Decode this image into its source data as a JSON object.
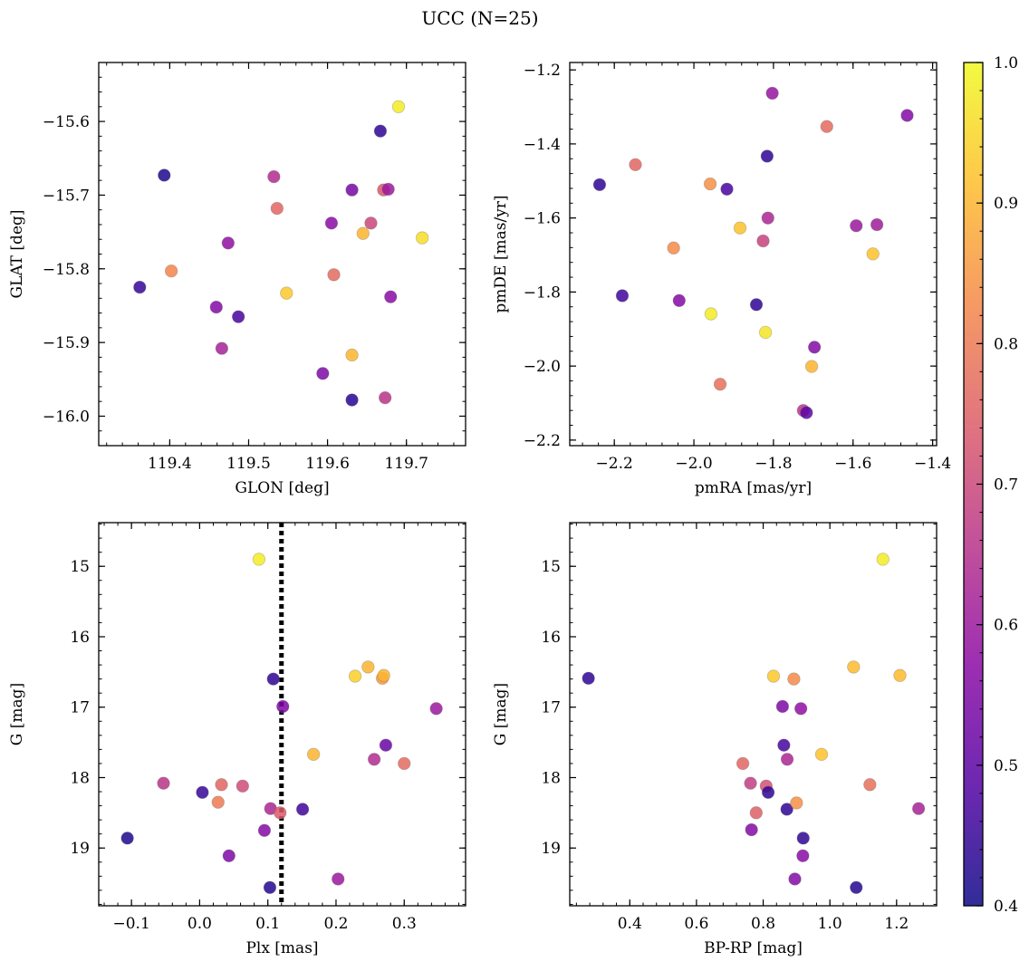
{
  "figure": {
    "title": "UCC (N=25)",
    "colormap": "plasma",
    "colorbar": {
      "range": [
        0.4,
        1.0
      ],
      "ticks": [
        "0.4",
        "0.5",
        "0.6",
        "0.7",
        "0.8",
        "0.9",
        "1.0"
      ],
      "tick_values": [
        0.4,
        0.5,
        0.6,
        0.7,
        0.8,
        0.9,
        1.0
      ]
    }
  },
  "chart_data": [
    {
      "type": "scatter",
      "xlabel": "GLON [deg]",
      "ylabel": "GLAT [deg]",
      "xlim": [
        119.31,
        119.775
      ],
      "ylim": [
        -16.04,
        -15.52
      ],
      "xticks": [
        119.4,
        119.5,
        119.6,
        119.7
      ],
      "xticklabels": [
        "119.4",
        "119.5",
        "119.6",
        "119.7"
      ],
      "yticks": [
        -15.6,
        -15.7,
        -15.8,
        -15.9,
        -16.0
      ],
      "yticklabels": [
        "−15.6",
        "−15.7",
        "−15.8",
        "−15.9",
        "−16.0"
      ],
      "y_inverted": false,
      "points": [
        {
          "x": 119.393,
          "y": -15.673,
          "c": 0.42
        },
        {
          "x": 119.362,
          "y": -15.825,
          "c": 0.45
        },
        {
          "x": 119.402,
          "y": -15.803,
          "c": 0.82
        },
        {
          "x": 119.459,
          "y": -15.852,
          "c": 0.56
        },
        {
          "x": 119.466,
          "y": -15.908,
          "c": 0.62
        },
        {
          "x": 119.474,
          "y": -15.765,
          "c": 0.58
        },
        {
          "x": 119.487,
          "y": -15.865,
          "c": 0.47
        },
        {
          "x": 119.532,
          "y": -15.675,
          "c": 0.64
        },
        {
          "x": 119.536,
          "y": -15.718,
          "c": 0.76
        },
        {
          "x": 119.548,
          "y": -15.833,
          "c": 0.93
        },
        {
          "x": 119.594,
          "y": -15.942,
          "c": 0.55
        },
        {
          "x": 119.605,
          "y": -15.738,
          "c": 0.57
        },
        {
          "x": 119.608,
          "y": -15.808,
          "c": 0.77
        },
        {
          "x": 119.631,
          "y": -15.693,
          "c": 0.54
        },
        {
          "x": 119.631,
          "y": -15.917,
          "c": 0.9
        },
        {
          "x": 119.631,
          "y": -15.978,
          "c": 0.43
        },
        {
          "x": 119.645,
          "y": -15.752,
          "c": 0.9
        },
        {
          "x": 119.655,
          "y": -15.738,
          "c": 0.7
        },
        {
          "x": 119.667,
          "y": -15.613,
          "c": 0.44
        },
        {
          "x": 119.671,
          "y": -15.693,
          "c": 0.73
        },
        {
          "x": 119.673,
          "y": -15.975,
          "c": 0.66
        },
        {
          "x": 119.677,
          "y": -15.692,
          "c": 0.6
        },
        {
          "x": 119.68,
          "y": -15.838,
          "c": 0.57
        },
        {
          "x": 119.69,
          "y": -15.58,
          "c": 0.98
        },
        {
          "x": 119.72,
          "y": -15.758,
          "c": 0.96
        }
      ]
    },
    {
      "type": "scatter",
      "xlabel": "pmRA [mas/yr]",
      "ylabel": "pmDE [mas/yr]",
      "xlim": [
        -2.312,
        -1.39
      ],
      "ylim": [
        -2.215,
        -1.18
      ],
      "xticks": [
        -2.2,
        -2.0,
        -1.8,
        -1.6,
        -1.4
      ],
      "xticklabels": [
        "−2.2",
        "−2.0",
        "−1.8",
        "−1.6",
        "−1.4"
      ],
      "yticks": [
        -1.2,
        -1.4,
        -1.6,
        -1.8,
        -2.0,
        -2.2
      ],
      "yticklabels": [
        "−1.2",
        "−1.4",
        "−1.6",
        "−1.8",
        "−2.0",
        "−2.2"
      ],
      "y_inverted": false,
      "points": [
        {
          "x": -2.237,
          "y": -1.51,
          "c": 0.44
        },
        {
          "x": -2.147,
          "y": -1.456,
          "c": 0.76
        },
        {
          "x": -2.18,
          "y": -1.81,
          "c": 0.46
        },
        {
          "x": -2.051,
          "y": -1.681,
          "c": 0.83
        },
        {
          "x": -2.037,
          "y": -1.823,
          "c": 0.56
        },
        {
          "x": -1.959,
          "y": -1.508,
          "c": 0.84
        },
        {
          "x": -1.957,
          "y": -1.859,
          "c": 0.98
        },
        {
          "x": -1.934,
          "y": -2.049,
          "c": 0.78
        },
        {
          "x": -1.917,
          "y": -1.522,
          "c": 0.47
        },
        {
          "x": -1.884,
          "y": -1.627,
          "c": 0.92
        },
        {
          "x": -1.843,
          "y": -1.834,
          "c": 0.44
        },
        {
          "x": -1.826,
          "y": -1.662,
          "c": 0.69
        },
        {
          "x": -1.82,
          "y": -1.909,
          "c": 0.97
        },
        {
          "x": -1.816,
          "y": -1.433,
          "c": 0.44
        },
        {
          "x": -1.814,
          "y": -1.6,
          "c": 0.63
        },
        {
          "x": -1.803,
          "y": -1.263,
          "c": 0.59
        },
        {
          "x": -1.725,
          "y": -2.12,
          "c": 0.66
        },
        {
          "x": -1.717,
          "y": -2.126,
          "c": 0.5
        },
        {
          "x": -1.704,
          "y": -2.001,
          "c": 0.9
        },
        {
          "x": -1.697,
          "y": -1.949,
          "c": 0.56
        },
        {
          "x": -1.666,
          "y": -1.353,
          "c": 0.77
        },
        {
          "x": -1.592,
          "y": -1.621,
          "c": 0.6
        },
        {
          "x": -1.55,
          "y": -1.697,
          "c": 0.92
        },
        {
          "x": -1.54,
          "y": -1.618,
          "c": 0.61
        },
        {
          "x": -1.464,
          "y": -1.323,
          "c": 0.56
        }
      ]
    },
    {
      "type": "scatter",
      "xlabel": "Plx [mas]",
      "ylabel": "G [mag]",
      "xlim": [
        -0.148,
        0.39
      ],
      "ylim": [
        14.38,
        19.82
      ],
      "xticks": [
        -0.1,
        0.0,
        0.1,
        0.2,
        0.3
      ],
      "xticklabels": [
        "−0.1",
        "0.0",
        "0.1",
        "0.2",
        "0.3"
      ],
      "yticks": [
        15,
        16,
        17,
        18,
        19
      ],
      "yticklabels": [
        "15",
        "16",
        "17",
        "18",
        "19"
      ],
      "y_inverted": true,
      "vline": {
        "x": 0.12,
        "style": "dotted",
        "color": "#000000"
      },
      "points": [
        {
          "x": 0.087,
          "y": 14.9,
          "c": 0.98
        },
        {
          "x": 0.108,
          "y": 16.6,
          "c": 0.44
        },
        {
          "x": 0.122,
          "y": 16.99,
          "c": 0.55
        },
        {
          "x": 0.228,
          "y": 16.56,
          "c": 0.94
        },
        {
          "x": 0.247,
          "y": 16.43,
          "c": 0.9
        },
        {
          "x": 0.268,
          "y": 16.59,
          "c": 0.85
        },
        {
          "x": 0.27,
          "y": 16.55,
          "c": 0.9
        },
        {
          "x": 0.347,
          "y": 17.02,
          "c": 0.6
        },
        {
          "x": 0.167,
          "y": 17.67,
          "c": 0.9
        },
        {
          "x": 0.256,
          "y": 17.74,
          "c": 0.64
        },
        {
          "x": 0.273,
          "y": 17.54,
          "c": 0.52
        },
        {
          "x": 0.3,
          "y": 17.8,
          "c": 0.77
        },
        {
          "x": -0.106,
          "y": 18.86,
          "c": 0.42
        },
        {
          "x": -0.053,
          "y": 18.08,
          "c": 0.66
        },
        {
          "x": 0.004,
          "y": 18.21,
          "c": 0.45
        },
        {
          "x": 0.027,
          "y": 18.35,
          "c": 0.8
        },
        {
          "x": 0.032,
          "y": 18.1,
          "c": 0.76
        },
        {
          "x": 0.043,
          "y": 19.11,
          "c": 0.55
        },
        {
          "x": 0.063,
          "y": 18.12,
          "c": 0.71
        },
        {
          "x": 0.095,
          "y": 18.75,
          "c": 0.56
        },
        {
          "x": 0.104,
          "y": 18.44,
          "c": 0.63
        },
        {
          "x": 0.103,
          "y": 19.56,
          "c": 0.43
        },
        {
          "x": 0.118,
          "y": 18.5,
          "c": 0.74
        },
        {
          "x": 0.151,
          "y": 18.45,
          "c": 0.46
        },
        {
          "x": 0.203,
          "y": 19.44,
          "c": 0.6
        }
      ]
    },
    {
      "type": "scatter",
      "xlabel": "BP-RP [mag]",
      "ylabel": "G [mag]",
      "xlim": [
        0.22,
        1.32
      ],
      "ylim": [
        14.38,
        19.82
      ],
      "xticks": [
        0.4,
        0.6,
        0.8,
        1.0,
        1.2
      ],
      "xticklabels": [
        "0.4",
        "0.6",
        "0.8",
        "1.0",
        "1.2"
      ],
      "yticks": [
        15,
        16,
        17,
        18,
        19
      ],
      "yticklabels": [
        "15",
        "16",
        "17",
        "18",
        "19"
      ],
      "y_inverted": true,
      "points": [
        {
          "x": 0.276,
          "y": 16.59,
          "c": 0.44
        },
        {
          "x": 0.739,
          "y": 17.8,
          "c": 0.76
        },
        {
          "x": 0.762,
          "y": 18.08,
          "c": 0.68
        },
        {
          "x": 0.765,
          "y": 18.74,
          "c": 0.56
        },
        {
          "x": 0.779,
          "y": 18.5,
          "c": 0.75
        },
        {
          "x": 0.809,
          "y": 18.12,
          "c": 0.72
        },
        {
          "x": 0.815,
          "y": 18.21,
          "c": 0.44
        },
        {
          "x": 0.831,
          "y": 16.56,
          "c": 0.93
        },
        {
          "x": 0.858,
          "y": 16.99,
          "c": 0.55
        },
        {
          "x": 0.862,
          "y": 17.54,
          "c": 0.47
        },
        {
          "x": 0.872,
          "y": 17.74,
          "c": 0.63
        },
        {
          "x": 0.871,
          "y": 18.45,
          "c": 0.44
        },
        {
          "x": 0.892,
          "y": 16.6,
          "c": 0.83
        },
        {
          "x": 0.895,
          "y": 19.44,
          "c": 0.56
        },
        {
          "x": 0.9,
          "y": 18.36,
          "c": 0.84
        },
        {
          "x": 0.913,
          "y": 17.02,
          "c": 0.58
        },
        {
          "x": 0.919,
          "y": 19.11,
          "c": 0.57
        },
        {
          "x": 0.92,
          "y": 18.86,
          "c": 0.44
        },
        {
          "x": 0.975,
          "y": 17.67,
          "c": 0.92
        },
        {
          "x": 1.071,
          "y": 16.43,
          "c": 0.91
        },
        {
          "x": 1.079,
          "y": 19.56,
          "c": 0.43
        },
        {
          "x": 1.12,
          "y": 18.1,
          "c": 0.78
        },
        {
          "x": 1.159,
          "y": 14.9,
          "c": 0.98
        },
        {
          "x": 1.21,
          "y": 16.55,
          "c": 0.91
        },
        {
          "x": 1.266,
          "y": 18.44,
          "c": 0.62
        }
      ]
    }
  ]
}
